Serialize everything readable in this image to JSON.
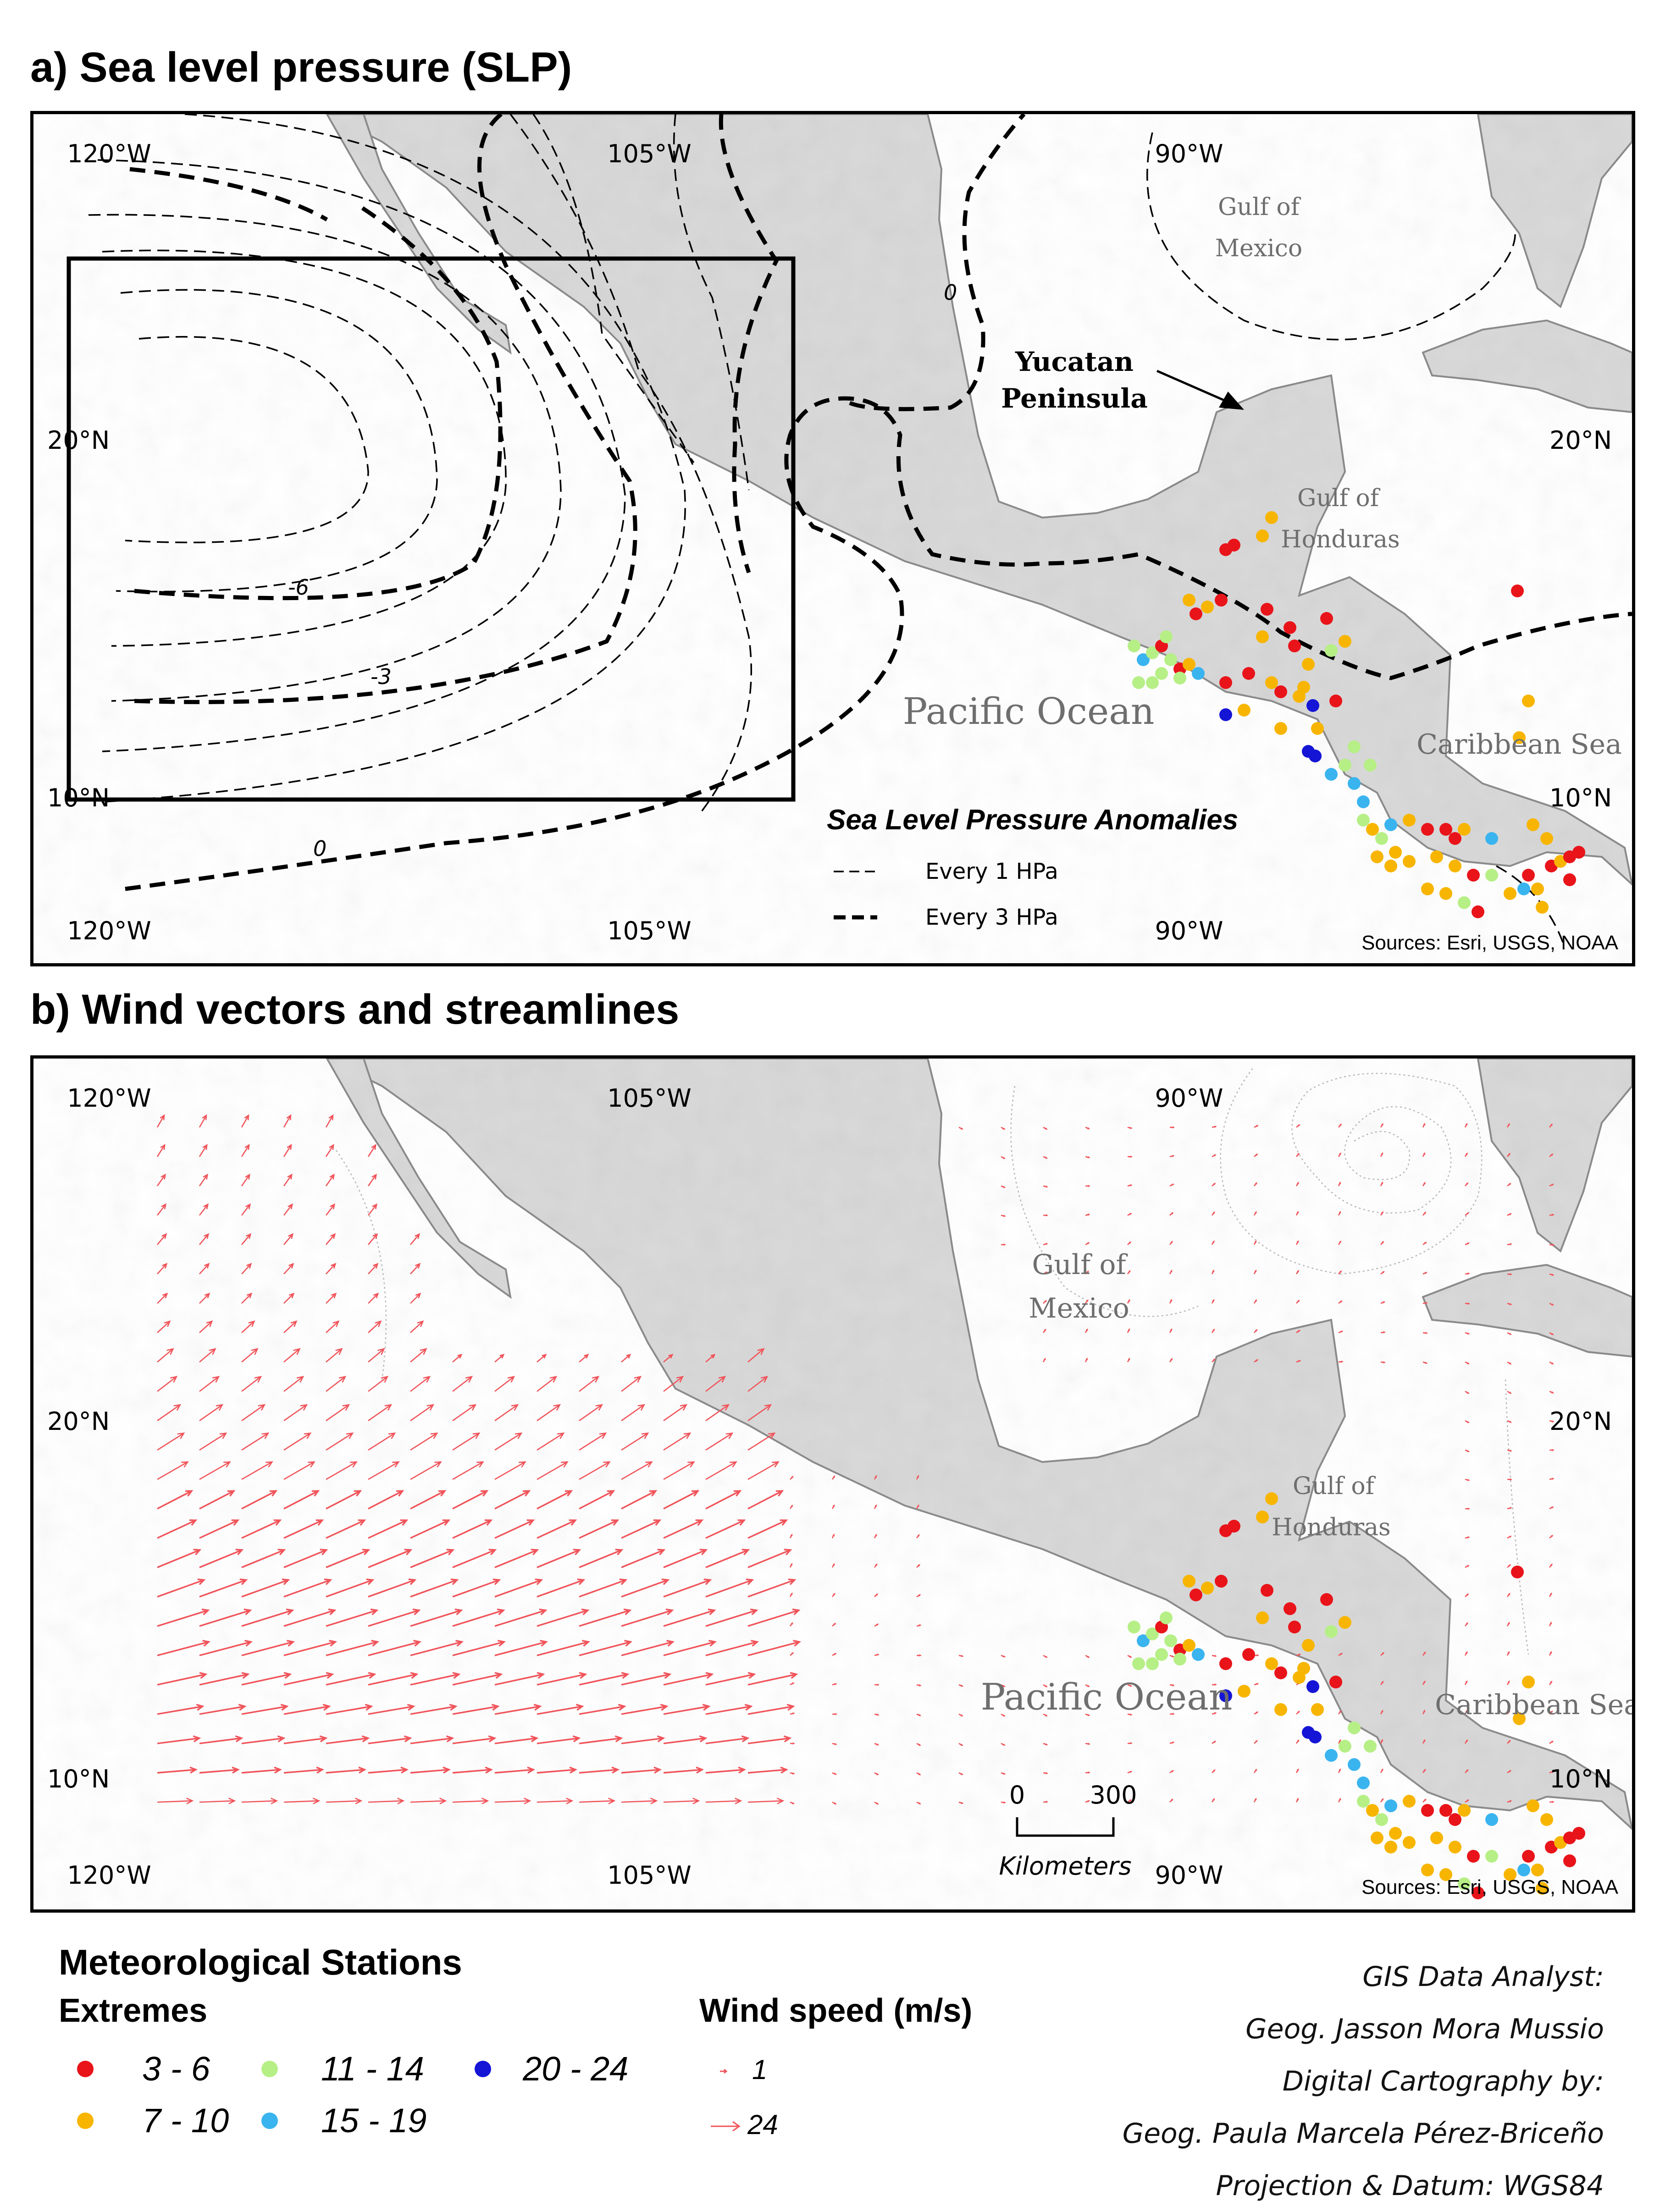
{
  "panel_a": {
    "title": "a) Sea level pressure (SLP)",
    "lon_labels": [
      "120°W",
      "105°W",
      "90°W"
    ],
    "lat_labels": [
      "20°N",
      "10°N"
    ],
    "contour_labels": [
      "0",
      "-6",
      "-3",
      "0"
    ],
    "places": {
      "gulf_mexico": [
        "Gulf of",
        "Mexico"
      ],
      "yucatan": [
        "Yucatan",
        "Peninsula"
      ],
      "gulf_honduras": [
        "Gulf of",
        "Honduras"
      ],
      "pacific": "Pacific Ocean",
      "caribbean": "Caribbean Sea"
    },
    "legend": {
      "title": "Sea Level Pressure Anomalies",
      "items": [
        "Every 1 HPa",
        "Every 3 HPa"
      ]
    },
    "sources": "Sources: Esri, USGS, NOAA"
  },
  "panel_b": {
    "title": "b) Wind vectors and streamlines",
    "lon_labels": [
      "120°W",
      "105°W",
      "90°W"
    ],
    "lat_labels": [
      "20°N",
      "10°N"
    ],
    "places": {
      "gulf_mexico": [
        "Gulf of",
        "Mexico"
      ],
      "gulf_honduras": [
        "Gulf of",
        "Honduras"
      ],
      "pacific": "Pacific Ocean",
      "caribbean": "Caribbean Sea"
    },
    "scale_bar": {
      "values": [
        "0",
        "300"
      ],
      "unit": "Kilometers"
    },
    "sources": "Sources: Esri, USGS, NOAA"
  },
  "legend": {
    "title": "Meteorological Stations",
    "extremes_title": "Extremes",
    "classes": [
      {
        "label": "3 - 6",
        "color": "#e8141a"
      },
      {
        "label": "7 - 10",
        "color": "#f7b500"
      },
      {
        "label": "11 - 14",
        "color": "#b6ef86"
      },
      {
        "label": "15 - 19",
        "color": "#3ab4ef"
      },
      {
        "label": "20 - 24",
        "color": "#1515d6"
      }
    ],
    "wind_title": "Wind speed (m/s)",
    "wind_items": [
      "1",
      "24"
    ],
    "wind_color": "#f0545a"
  },
  "credits": [
    "GIS Data Analyst:",
    "Geog. Jasson Mora Mussio",
    "Digital Cartography by:",
    "Geog. Paula Marcela Pérez-Briceño",
    "Projection & Datum: WGS84"
  ]
}
